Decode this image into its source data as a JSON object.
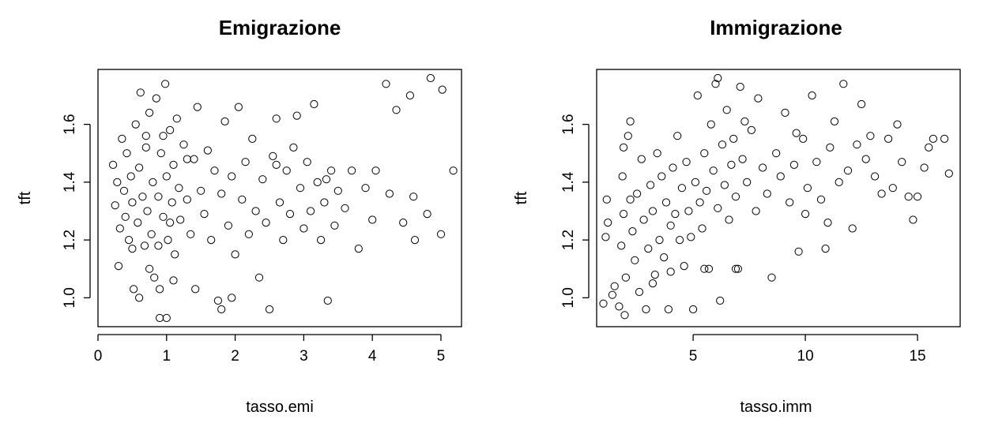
{
  "chart_data": [
    {
      "type": "scatter",
      "title": "Emigrazione",
      "xlabel": "tasso.emi",
      "ylabel": "tft",
      "xlim": [
        0,
        5.3
      ],
      "ylim": [
        0.9,
        1.79
      ],
      "xticks": [
        0,
        1,
        2,
        3,
        4,
        5
      ],
      "yticks": [
        1.0,
        1.2,
        1.4,
        1.6
      ],
      "xtick_labels": [
        "0",
        "1",
        "2",
        "3",
        "4",
        "5"
      ],
      "ytick_labels": [
        "1.0",
        "1.2",
        "1.4",
        "1.6"
      ],
      "grid": false,
      "legend": "none",
      "points": [
        [
          0.22,
          1.46
        ],
        [
          0.25,
          1.32
        ],
        [
          0.28,
          1.4
        ],
        [
          0.3,
          1.11
        ],
        [
          0.32,
          1.24
        ],
        [
          0.35,
          1.55
        ],
        [
          0.38,
          1.37
        ],
        [
          0.4,
          1.28
        ],
        [
          0.42,
          1.5
        ],
        [
          0.45,
          1.2
        ],
        [
          0.48,
          1.42
        ],
        [
          0.5,
          1.33
        ],
        [
          0.52,
          1.03
        ],
        [
          0.55,
          1.6
        ],
        [
          0.58,
          1.26
        ],
        [
          0.6,
          1.45
        ],
        [
          0.62,
          1.71
        ],
        [
          0.65,
          1.35
        ],
        [
          0.68,
          1.18
        ],
        [
          0.7,
          1.52
        ],
        [
          0.72,
          1.3
        ],
        [
          0.75,
          1.64
        ],
        [
          0.78,
          1.22
        ],
        [
          0.8,
          1.4
        ],
        [
          0.82,
          1.07
        ],
        [
          0.85,
          1.69
        ],
        [
          0.88,
          1.35
        ],
        [
          0.9,
          0.93
        ],
        [
          0.92,
          1.5
        ],
        [
          0.95,
          1.28
        ],
        [
          0.98,
          1.74
        ],
        [
          1.0,
          1.42
        ],
        [
          1.02,
          1.2
        ],
        [
          1.05,
          1.58
        ],
        [
          1.08,
          1.33
        ],
        [
          1.1,
          1.46
        ],
        [
          1.12,
          1.15
        ],
        [
          1.15,
          1.62
        ],
        [
          1.18,
          1.38
        ],
        [
          1.2,
          1.27
        ],
        [
          1.25,
          1.53
        ],
        [
          1.3,
          1.34
        ],
        [
          1.35,
          1.22
        ],
        [
          1.4,
          1.48
        ],
        [
          1.42,
          1.03
        ],
        [
          1.45,
          1.66
        ],
        [
          1.5,
          1.37
        ],
        [
          1.55,
          1.29
        ],
        [
          1.6,
          1.51
        ],
        [
          1.65,
          1.2
        ],
        [
          1.7,
          1.44
        ],
        [
          1.75,
          0.99
        ],
        [
          1.8,
          1.36
        ],
        [
          1.85,
          1.61
        ],
        [
          1.9,
          1.25
        ],
        [
          1.95,
          1.42
        ],
        [
          2.0,
          1.15
        ],
        [
          2.05,
          1.66
        ],
        [
          2.1,
          1.34
        ],
        [
          2.15,
          1.47
        ],
        [
          2.2,
          1.22
        ],
        [
          2.25,
          1.55
        ],
        [
          2.3,
          1.3
        ],
        [
          2.35,
          1.07
        ],
        [
          2.4,
          1.41
        ],
        [
          2.45,
          1.26
        ],
        [
          2.5,
          0.96
        ],
        [
          2.55,
          1.49
        ],
        [
          2.6,
          1.62
        ],
        [
          2.65,
          1.33
        ],
        [
          2.7,
          1.2
        ],
        [
          2.75,
          1.44
        ],
        [
          2.8,
          1.29
        ],
        [
          2.85,
          1.52
        ],
        [
          2.9,
          1.63
        ],
        [
          2.95,
          1.38
        ],
        [
          3.0,
          1.24
        ],
        [
          3.05,
          1.47
        ],
        [
          3.1,
          1.3
        ],
        [
          3.15,
          1.67
        ],
        [
          3.2,
          1.4
        ],
        [
          3.25,
          1.2
        ],
        [
          3.3,
          1.33
        ],
        [
          3.35,
          0.99
        ],
        [
          3.4,
          1.44
        ],
        [
          3.45,
          1.25
        ],
        [
          3.5,
          1.37
        ],
        [
          3.6,
          1.31
        ],
        [
          3.7,
          1.44
        ],
        [
          3.8,
          1.17
        ],
        [
          3.9,
          1.38
        ],
        [
          4.0,
          1.27
        ],
        [
          4.05,
          1.44
        ],
        [
          4.2,
          1.74
        ],
        [
          4.25,
          1.36
        ],
        [
          4.35,
          1.65
        ],
        [
          4.45,
          1.26
        ],
        [
          4.55,
          1.7
        ],
        [
          4.6,
          1.35
        ],
        [
          4.62,
          1.2
        ],
        [
          4.8,
          1.29
        ],
        [
          4.85,
          1.76
        ],
        [
          5.0,
          1.22
        ],
        [
          5.02,
          1.72
        ],
        [
          5.18,
          1.44
        ],
        [
          0.6,
          1.0
        ],
        [
          0.9,
          1.03
        ],
        [
          1.0,
          0.93
        ],
        [
          1.8,
          0.96
        ],
        [
          1.95,
          1.0
        ],
        [
          0.75,
          1.1
        ],
        [
          1.1,
          1.06
        ],
        [
          0.5,
          1.17
        ],
        [
          0.95,
          1.56
        ],
        [
          1.3,
          1.48
        ],
        [
          0.7,
          1.56
        ],
        [
          1.05,
          1.26
        ],
        [
          2.6,
          1.46
        ],
        [
          0.88,
          1.18
        ],
        [
          3.33,
          1.41
        ]
      ]
    },
    {
      "type": "scatter",
      "title": "Immigrazione",
      "xlabel": "tasso.imm",
      "ylabel": "tft",
      "xlim": [
        0.7,
        16.9
      ],
      "ylim": [
        0.9,
        1.79
      ],
      "xticks": [
        5,
        10,
        15
      ],
      "yticks": [
        1.0,
        1.2,
        1.4,
        1.6
      ],
      "xtick_labels": [
        "5",
        "10",
        "15"
      ],
      "ytick_labels": [
        "1.0",
        "1.2",
        "1.4",
        "1.6"
      ],
      "grid": false,
      "legend": "none",
      "points": [
        [
          1.0,
          0.98
        ],
        [
          1.1,
          1.21
        ],
        [
          1.15,
          1.34
        ],
        [
          1.2,
          1.26
        ],
        [
          1.4,
          1.01
        ],
        [
          1.5,
          1.04
        ],
        [
          1.7,
          0.97
        ],
        [
          1.8,
          1.18
        ],
        [
          1.85,
          1.42
        ],
        [
          1.9,
          1.29
        ],
        [
          1.95,
          0.94
        ],
        [
          2.0,
          1.07
        ],
        [
          2.1,
          1.56
        ],
        [
          2.2,
          1.61
        ],
        [
          2.3,
          1.23
        ],
        [
          2.4,
          1.13
        ],
        [
          2.5,
          1.36
        ],
        [
          2.6,
          1.02
        ],
        [
          2.7,
          1.48
        ],
        [
          2.8,
          1.27
        ],
        [
          2.9,
          0.96
        ],
        [
          3.0,
          1.17
        ],
        [
          3.1,
          1.39
        ],
        [
          3.2,
          1.3
        ],
        [
          3.3,
          1.08
        ],
        [
          3.4,
          1.5
        ],
        [
          3.5,
          1.2
        ],
        [
          3.6,
          1.42
        ],
        [
          3.7,
          1.14
        ],
        [
          3.8,
          1.33
        ],
        [
          3.9,
          0.96
        ],
        [
          4.0,
          1.25
        ],
        [
          4.1,
          1.45
        ],
        [
          4.2,
          1.29
        ],
        [
          4.3,
          1.56
        ],
        [
          4.4,
          1.2
        ],
        [
          4.5,
          1.38
        ],
        [
          4.6,
          1.11
        ],
        [
          4.7,
          1.47
        ],
        [
          4.8,
          1.3
        ],
        [
          4.9,
          1.21
        ],
        [
          5.0,
          0.96
        ],
        [
          5.1,
          1.4
        ],
        [
          5.2,
          1.7
        ],
        [
          5.3,
          1.33
        ],
        [
          5.4,
          1.24
        ],
        [
          5.5,
          1.5
        ],
        [
          5.6,
          1.37
        ],
        [
          5.7,
          1.1
        ],
        [
          5.8,
          1.6
        ],
        [
          5.9,
          1.44
        ],
        [
          6.0,
          1.74
        ],
        [
          6.1,
          1.31
        ],
        [
          6.2,
          0.99
        ],
        [
          6.3,
          1.53
        ],
        [
          6.4,
          1.39
        ],
        [
          6.5,
          1.65
        ],
        [
          6.6,
          1.27
        ],
        [
          6.7,
          1.46
        ],
        [
          6.8,
          1.55
        ],
        [
          6.9,
          1.35
        ],
        [
          7.0,
          1.1
        ],
        [
          7.1,
          1.73
        ],
        [
          7.2,
          1.48
        ],
        [
          7.4,
          1.4
        ],
        [
          7.6,
          1.58
        ],
        [
          7.8,
          1.3
        ],
        [
          7.9,
          1.69
        ],
        [
          8.1,
          1.45
        ],
        [
          8.3,
          1.36
        ],
        [
          8.5,
          1.07
        ],
        [
          8.7,
          1.5
        ],
        [
          8.9,
          1.42
        ],
        [
          9.1,
          1.64
        ],
        [
          9.3,
          1.33
        ],
        [
          9.5,
          1.46
        ],
        [
          9.7,
          1.16
        ],
        [
          9.9,
          1.55
        ],
        [
          10.1,
          1.38
        ],
        [
          10.3,
          1.7
        ],
        [
          10.5,
          1.47
        ],
        [
          10.7,
          1.34
        ],
        [
          10.9,
          1.17
        ],
        [
          11.1,
          1.52
        ],
        [
          11.3,
          1.61
        ],
        [
          11.5,
          1.4
        ],
        [
          11.7,
          1.74
        ],
        [
          11.9,
          1.44
        ],
        [
          12.1,
          1.24
        ],
        [
          12.3,
          1.53
        ],
        [
          12.5,
          1.67
        ],
        [
          12.7,
          1.48
        ],
        [
          12.9,
          1.56
        ],
        [
          13.1,
          1.42
        ],
        [
          13.4,
          1.36
        ],
        [
          13.7,
          1.55
        ],
        [
          13.9,
          1.38
        ],
        [
          14.1,
          1.6
        ],
        [
          14.3,
          1.47
        ],
        [
          14.6,
          1.35
        ],
        [
          14.8,
          1.27
        ],
        [
          15.0,
          1.35
        ],
        [
          15.3,
          1.45
        ],
        [
          15.5,
          1.52
        ],
        [
          15.7,
          1.55
        ],
        [
          16.2,
          1.55
        ],
        [
          16.4,
          1.43
        ],
        [
          6.1,
          1.76
        ],
        [
          7.3,
          1.61
        ],
        [
          9.6,
          1.57
        ],
        [
          10.0,
          1.29
        ],
        [
          11.0,
          1.26
        ],
        [
          3.2,
          1.05
        ],
        [
          4.0,
          1.09
        ],
        [
          5.5,
          1.1
        ],
        [
          6.9,
          1.1
        ],
        [
          2.2,
          1.34
        ],
        [
          1.9,
          1.52
        ]
      ]
    }
  ]
}
